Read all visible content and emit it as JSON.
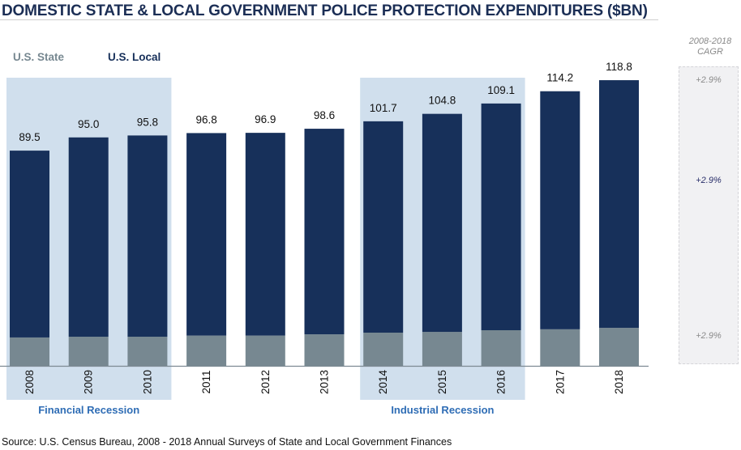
{
  "header": {
    "title": "DOMESTIC STATE & LOCAL GOVERNMENT POLICE PROTECTION EXPENDITURES ($BN)"
  },
  "footer": {
    "source": "Source: U.S. Census Bureau, 2008 - 2018 Annual Surveys of State and Local Government Finances"
  },
  "colors": {
    "state": "#778891",
    "local": "#17305a",
    "highlight": "#d0dfed",
    "annotation": "#2f6db5",
    "title": "#1b2e55",
    "cagr_muted": "#8a8a8a",
    "cagr_local": "#2a2f6a"
  },
  "cagr": {
    "header_line1": "2008-2018",
    "header_line2": "CAGR",
    "total": "+2.9%",
    "local": "+2.9%",
    "state": "+2.9%"
  },
  "chart_data": {
    "type": "bar",
    "stacked": true,
    "title": "DOMESTIC STATE & LOCAL GOVERNMENT POLICE PROTECTION EXPENDITURES ($BN)",
    "xlabel": "",
    "ylabel": "",
    "ylim": [
      0,
      120
    ],
    "grid": false,
    "legend_position": "top-left",
    "categories": [
      "2008",
      "2009",
      "2010",
      "2011",
      "2012",
      "2013",
      "2014",
      "2015",
      "2016",
      "2017",
      "2018"
    ],
    "series": [
      {
        "name": "U.S. State",
        "values": [
          11.8,
          12.1,
          12.1,
          12.6,
          12.6,
          13.1,
          13.8,
          14.1,
          14.8,
          15.2,
          15.8
        ]
      },
      {
        "name": "U.S. Local",
        "values": [
          77.7,
          82.9,
          83.7,
          84.2,
          84.3,
          85.5,
          87.9,
          90.7,
          94.3,
          99.0,
          103.0
        ]
      }
    ],
    "totals": [
      "89.5",
      "95.0",
      "95.8",
      "96.8",
      "96.9",
      "98.6",
      "101.7",
      "104.8",
      "109.1",
      "114.2",
      "118.8"
    ],
    "highlight_periods": [
      {
        "label": "Financial Recession",
        "start": "2008",
        "end": "2010"
      },
      {
        "label": "Industrial Recession",
        "start": "2014",
        "end": "2016"
      }
    ]
  }
}
